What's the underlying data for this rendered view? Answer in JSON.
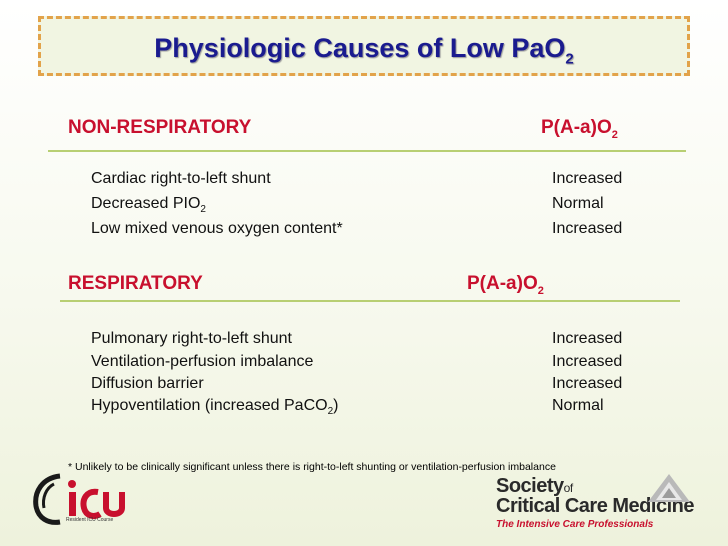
{
  "title": {
    "main": "Physiologic Causes of Low PaO",
    "sub": "2"
  },
  "non_respiratory": {
    "heading": "NON-RESPIRATORY",
    "col_main": "P(A-a)O",
    "col_sub": "2",
    "rows": [
      {
        "cause": "Cardiac right-to-left shunt",
        "cause_sub": "",
        "cause_after": "",
        "value": "Increased"
      },
      {
        "cause": "Decreased PIO",
        "cause_sub": "2",
        "cause_after": "",
        "value": "Normal"
      },
      {
        "cause": "Low mixed venous oxygen content*",
        "cause_sub": "",
        "cause_after": "",
        "value": "Increased"
      }
    ]
  },
  "respiratory": {
    "heading": "RESPIRATORY",
    "col_main": "P(A-a)O",
    "col_sub": "2",
    "rows": [
      {
        "cause": "Pulmonary right-to-left shunt",
        "cause_sub": "",
        "cause_after": "",
        "value": "Increased"
      },
      {
        "cause": "Ventilation-perfusion imbalance",
        "cause_sub": "",
        "cause_after": "",
        "value": "Increased"
      },
      {
        "cause": "Diffusion barrier",
        "cause_sub": "",
        "cause_after": "",
        "value": "Increased"
      },
      {
        "cause": "Hypoventilation (increased PaCO",
        "cause_sub": "2",
        "cause_after": ")",
        "value": "Normal"
      }
    ]
  },
  "footnote": "* Unlikely to be clinically significant unless there is right-to-left shunting or ventilation-perfusion imbalance",
  "logos": {
    "icu": {
      "letters": "ICU",
      "tagline": "Resident ICU Course"
    },
    "sccm": {
      "line1": "Society",
      "of": "of",
      "line2": "Critical Care Medicine",
      "line3": "The Intensive Care Professionals"
    }
  },
  "colors": {
    "title": "#1a1b8f",
    "heading": "#c8102e",
    "rule": "#b8cf73",
    "title_border": "#e2a34a"
  }
}
